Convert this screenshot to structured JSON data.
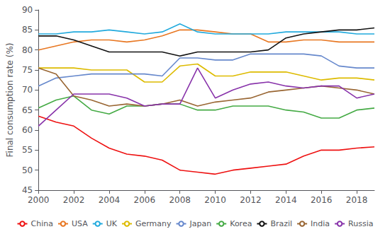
{
  "chart_data": {
    "type": "line",
    "x": [
      2000,
      2001,
      2002,
      2003,
      2004,
      2005,
      2006,
      2007,
      2008,
      2009,
      2010,
      2011,
      2012,
      2013,
      2014,
      2015,
      2016,
      2017,
      2018,
      2019
    ],
    "series": [
      {
        "name": "China",
        "color": "#EE1111",
        "values": [
          63.5,
          62.0,
          61.0,
          58.0,
          55.5,
          54.0,
          53.5,
          52.5,
          50.0,
          49.5,
          49.0,
          50.0,
          50.5,
          51.0,
          51.5,
          53.5,
          55.0,
          55.0,
          55.5,
          55.8
        ]
      },
      {
        "name": "USA",
        "color": "#E87722",
        "values": [
          80.0,
          81.0,
          82.0,
          82.5,
          82.5,
          82.0,
          82.5,
          83.5,
          85.0,
          85.0,
          84.5,
          84.0,
          84.0,
          82.0,
          82.0,
          82.5,
          82.5,
          82.0,
          82.0,
          82.0
        ]
      },
      {
        "name": "UK",
        "color": "#22AADD",
        "values": [
          84.0,
          84.0,
          84.5,
          84.5,
          85.0,
          84.5,
          84.0,
          84.5,
          86.5,
          84.5,
          84.0,
          84.0,
          84.0,
          84.0,
          84.5,
          84.5,
          84.5,
          84.5,
          84.0,
          84.0
        ]
      },
      {
        "name": "Germany",
        "color": "#DDBB00",
        "values": [
          75.5,
          75.5,
          75.5,
          75.0,
          75.0,
          75.0,
          72.0,
          72.0,
          76.0,
          76.5,
          73.5,
          73.5,
          74.5,
          74.5,
          74.5,
          73.5,
          72.5,
          73.0,
          73.0,
          72.5
        ]
      },
      {
        "name": "Japan",
        "color": "#6688CC",
        "values": [
          71.0,
          73.0,
          73.5,
          74.0,
          74.0,
          74.0,
          74.0,
          73.5,
          78.0,
          78.0,
          77.5,
          77.5,
          79.0,
          79.0,
          79.0,
          79.0,
          78.5,
          76.0,
          75.5,
          75.5
        ]
      },
      {
        "name": "Korea",
        "color": "#44AA44",
        "values": [
          65.5,
          67.5,
          68.5,
          65.0,
          64.0,
          66.0,
          66.0,
          66.5,
          66.5,
          65.0,
          65.0,
          66.0,
          66.0,
          66.0,
          65.0,
          64.5,
          63.0,
          63.0,
          65.0,
          65.5
        ]
      },
      {
        "name": "Brazil",
        "color": "#111111",
        "values": [
          83.5,
          83.5,
          82.5,
          81.0,
          79.5,
          79.5,
          79.5,
          79.5,
          78.5,
          79.5,
          79.5,
          79.5,
          79.5,
          80.0,
          83.0,
          84.0,
          84.5,
          85.0,
          85.0,
          85.5
        ]
      },
      {
        "name": "India",
        "color": "#996633",
        "values": [
          75.5,
          74.0,
          68.5,
          67.5,
          66.0,
          66.5,
          66.0,
          66.5,
          67.5,
          66.0,
          67.0,
          67.5,
          68.0,
          69.5,
          70.0,
          70.5,
          71.0,
          70.5,
          70.0,
          69.0
        ]
      },
      {
        "name": "Russia",
        "color": "#8833AA",
        "values": [
          61.0,
          65.0,
          69.0,
          69.0,
          69.0,
          68.0,
          66.0,
          66.5,
          66.5,
          75.5,
          68.0,
          70.0,
          71.5,
          72.0,
          71.0,
          70.5,
          71.0,
          71.0,
          68.0,
          69.0
        ]
      }
    ],
    "ylabel": "Final consumption rate (%)",
    "xlim": [
      2000,
      2019
    ],
    "xticks": [
      2000,
      2002,
      2004,
      2006,
      2008,
      2010,
      2012,
      2014,
      2016,
      2018
    ],
    "ylim": [
      45,
      90
    ],
    "yticks": [
      45,
      50,
      55,
      60,
      65,
      70,
      75,
      80,
      85,
      90
    ],
    "grid": false,
    "legend": "bottom"
  }
}
